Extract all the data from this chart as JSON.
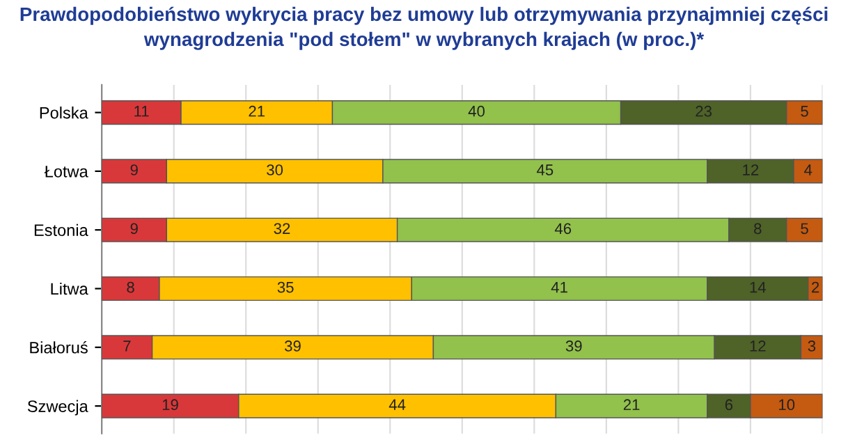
{
  "chart_data": {
    "type": "bar",
    "orientation": "horizontal",
    "stacked": true,
    "data_labels": true,
    "title": "Prawdopodobieństwo wykrycia pracy bez umowy lub otrzymywania przynajmniej części\nwynagrodzenia \"pod stołem\" w wybranych krajach (w proc.)*",
    "categories": [
      "Polska",
      "Łotwa",
      "Estonia",
      "Litwa",
      "Białoruś",
      "Szwecja"
    ],
    "series": [
      {
        "color": "#d9383a",
        "values": [
          11,
          9,
          9,
          8,
          7,
          19
        ]
      },
      {
        "color": "#ffc000",
        "values": [
          21,
          30,
          32,
          35,
          39,
          44
        ]
      },
      {
        "color": "#92c14c",
        "values": [
          40,
          45,
          46,
          41,
          39,
          21
        ]
      },
      {
        "color": "#4f6228",
        "values": [
          23,
          12,
          8,
          14,
          12,
          6
        ]
      },
      {
        "color": "#c55a11",
        "values": [
          5,
          4,
          5,
          2,
          3,
          10
        ]
      }
    ],
    "xlim": [
      0,
      100
    ],
    "xticks": [
      {
        "value": 0,
        "label": null
      },
      {
        "value": 10,
        "label": null
      },
      {
        "value": 20,
        "label": null
      },
      {
        "value": 30,
        "label": null
      },
      {
        "value": 40,
        "label": null
      },
      {
        "value": 50,
        "label": null
      },
      {
        "value": 60,
        "label": null
      },
      {
        "value": 70,
        "label": null
      },
      {
        "value": 80,
        "label": null
      },
      {
        "value": 90,
        "label": null
      },
      {
        "value": 100,
        "label": null
      }
    ],
    "grid": "x",
    "tick_labels": "y",
    "legend": false
  }
}
